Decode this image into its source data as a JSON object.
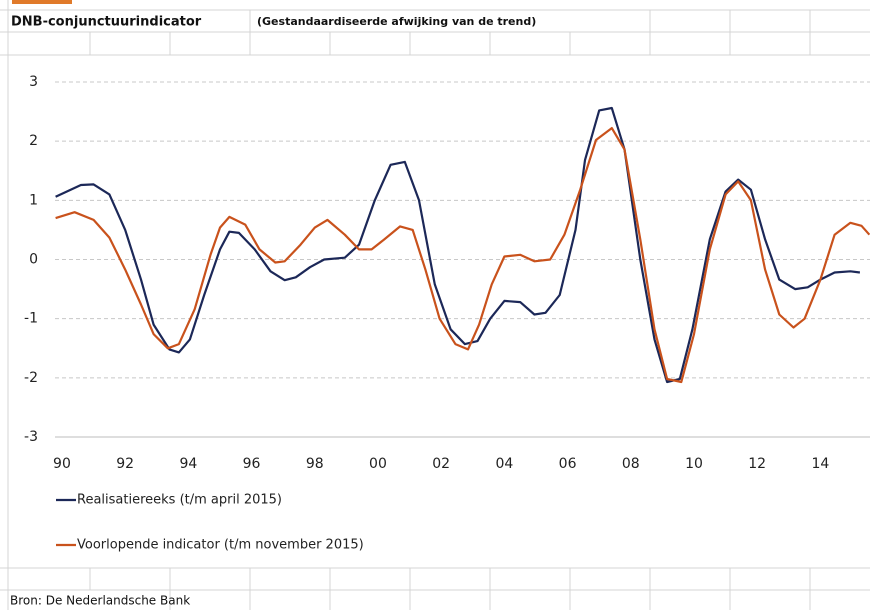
{
  "chart_data": {
    "type": "line",
    "title": "DNB-conjunctuurindicator",
    "subtitle": "(Gestandaardiseerde afwijking van de trend)",
    "source": "Bron: De Nederlandsche Bank",
    "xlim": [
      1989.78,
      2015.57
    ],
    "xticks": [
      {
        "value": 1990,
        "label": "90"
      },
      {
        "value": 1992,
        "label": "92"
      },
      {
        "value": 1994,
        "label": "94"
      },
      {
        "value": 1996,
        "label": "96"
      },
      {
        "value": 1998,
        "label": "98"
      },
      {
        "value": 2000,
        "label": "00"
      },
      {
        "value": 2002,
        "label": "02"
      },
      {
        "value": 2004,
        "label": "04"
      },
      {
        "value": 2006,
        "label": "06"
      },
      {
        "value": 2008,
        "label": "08"
      },
      {
        "value": 2010,
        "label": "10"
      },
      {
        "value": 2012,
        "label": "12"
      },
      {
        "value": 2014,
        "label": "14"
      }
    ],
    "ylim": [
      -3,
      3
    ],
    "yticks": [
      3,
      2,
      1,
      0,
      -1,
      -2,
      -3
    ],
    "grid": true,
    "series": [
      {
        "name": "Realisatiereeks (t/m april 2015)",
        "color": "#1c2858",
        "x": [
          1989.8,
          1990.6,
          1991.0,
          1991.5,
          1992.0,
          1992.5,
          1992.9,
          1993.4,
          1993.7,
          1994.05,
          1994.5,
          1995.0,
          1995.3,
          1995.6,
          1996.1,
          1996.6,
          1997.05,
          1997.4,
          1997.85,
          1998.3,
          1998.95,
          1999.4,
          1999.9,
          2000.4,
          2000.85,
          2001.3,
          2001.8,
          2002.3,
          2002.75,
          2003.15,
          2003.55,
          2004.0,
          2004.5,
          2004.95,
          2005.3,
          2005.75,
          2006.25,
          2006.55,
          2007.0,
          2007.4,
          2007.8,
          2008.3,
          2008.75,
          2009.15,
          2009.55,
          2009.95,
          2010.5,
          2011.0,
          2011.4,
          2011.8,
          2012.25,
          2012.7,
          2013.2,
          2013.6,
          2014.0,
          2014.45,
          2014.95,
          2015.25
        ],
        "values": [
          1.06,
          1.26,
          1.27,
          1.1,
          0.5,
          -0.34,
          -1.1,
          -1.52,
          -1.57,
          -1.35,
          -0.6,
          0.17,
          0.47,
          0.45,
          0.17,
          -0.2,
          -0.35,
          -0.3,
          -0.13,
          0,
          0.03,
          0.25,
          1.0,
          1.6,
          1.65,
          1.0,
          -0.42,
          -1.18,
          -1.43,
          -1.38,
          -1.0,
          -0.7,
          -0.72,
          -0.93,
          -0.9,
          -0.6,
          0.5,
          1.68,
          2.52,
          2.56,
          1.86,
          0,
          -1.35,
          -2.07,
          -2.02,
          -1.18,
          0.34,
          1.15,
          1.35,
          1.18,
          0.34,
          -0.34,
          -0.5,
          -0.47,
          -0.34,
          -0.22,
          -0.2,
          -0.22
        ]
      },
      {
        "name": "Voorlopende indicator (t/m november 2015)",
        "color": "#c9521c",
        "x": [
          1989.8,
          1990.4,
          1991.0,
          1991.5,
          1992.0,
          1992.5,
          1992.9,
          1993.35,
          1993.7,
          1994.2,
          1994.7,
          1995.0,
          1995.3,
          1995.8,
          1996.25,
          1996.75,
          1997.05,
          1997.55,
          1998.0,
          1998.4,
          1998.95,
          1999.4,
          1999.8,
          2000.2,
          2000.7,
          2001.1,
          2001.5,
          2001.95,
          2002.45,
          2002.85,
          2003.2,
          2003.6,
          2004.0,
          2004.5,
          2004.95,
          2005.45,
          2005.9,
          2006.4,
          2006.9,
          2007.4,
          2007.8,
          2008.3,
          2008.75,
          2009.15,
          2009.6,
          2010.0,
          2010.5,
          2011.0,
          2011.4,
          2011.8,
          2012.25,
          2012.7,
          2013.15,
          2013.5,
          2014.0,
          2014.45,
          2014.95,
          2015.3,
          2015.55
        ],
        "values": [
          0.7,
          0.8,
          0.67,
          0.37,
          -0.17,
          -0.76,
          -1.26,
          -1.5,
          -1.43,
          -0.84,
          0.08,
          0.54,
          0.72,
          0.59,
          0.17,
          -0.05,
          -0.03,
          0.25,
          0.54,
          0.67,
          0.42,
          0.17,
          0.17,
          0.34,
          0.56,
          0.5,
          -0.17,
          -1.0,
          -1.43,
          -1.52,
          -1.1,
          -0.42,
          0.05,
          0.08,
          -0.03,
          0,
          0.42,
          1.18,
          2.02,
          2.22,
          1.86,
          0.34,
          -1.18,
          -2.02,
          -2.07,
          -1.26,
          0.17,
          1.1,
          1.32,
          1.0,
          -0.17,
          -0.93,
          -1.15,
          -1.0,
          -0.34,
          0.42,
          0.62,
          0.57,
          0.42
        ]
      }
    ]
  }
}
